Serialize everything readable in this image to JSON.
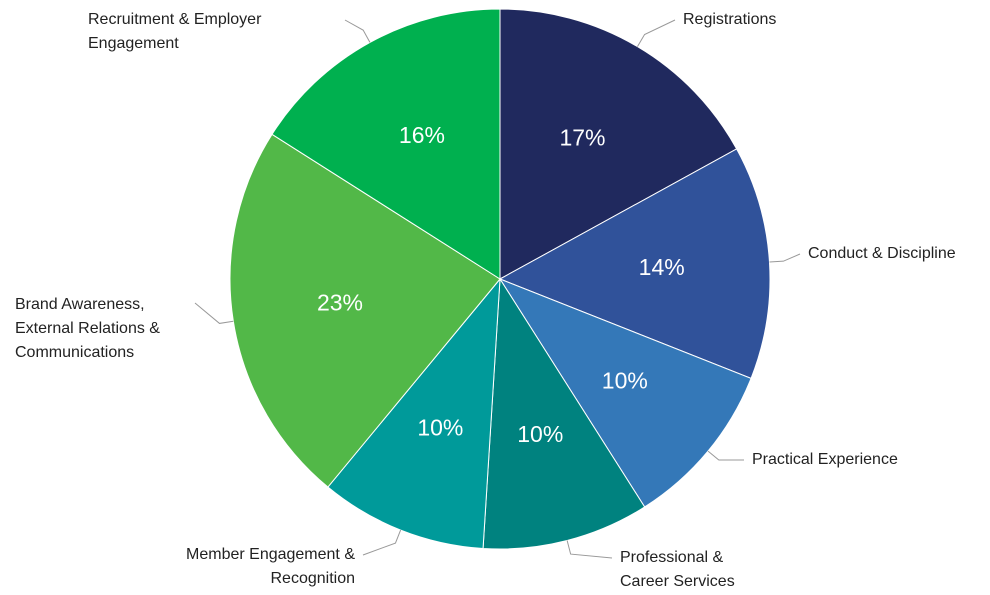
{
  "chart_data": {
    "type": "pie",
    "categories": [
      "Registrations",
      "Conduct & Discipline",
      "Practical Experience",
      "Professional & Career Services",
      "Member Engagement & Recognition",
      "Brand Awareness, External Relations & Communications",
      "Recruitment & Employer Engagement"
    ],
    "values": [
      17,
      14,
      10,
      10,
      10,
      23,
      16
    ],
    "value_labels": [
      "17%",
      "14%",
      "10%",
      "10%",
      "10%",
      "23%",
      "16%"
    ],
    "colors": [
      "#20295e",
      "#30529a",
      "#3478b8",
      "#00827f",
      "#009a9a",
      "#52b848",
      "#00b04f"
    ]
  }
}
